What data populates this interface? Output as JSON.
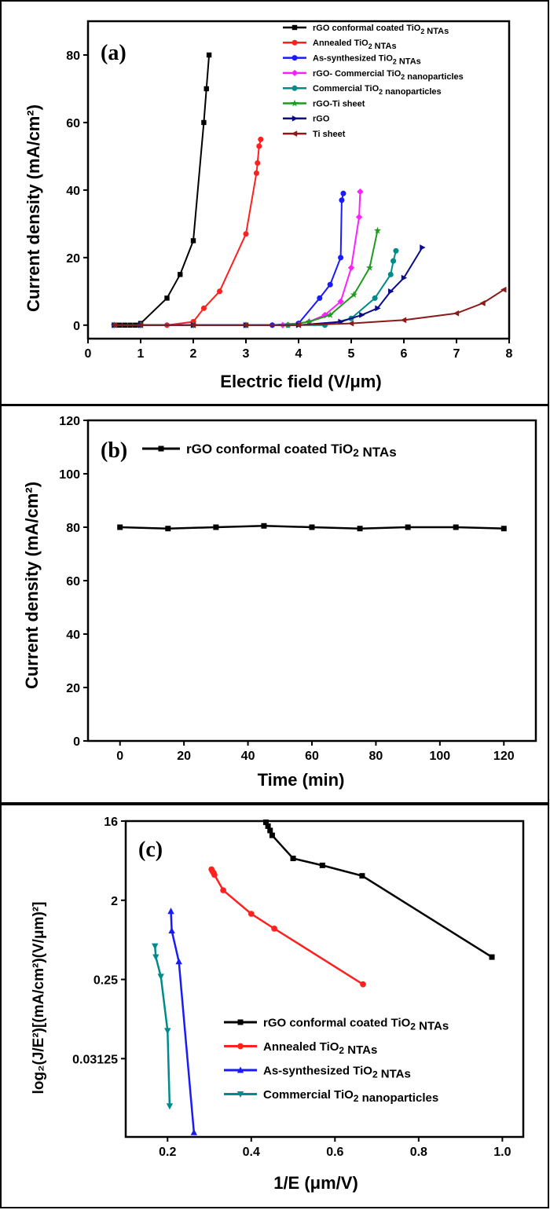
{
  "chart_data": [
    {
      "id": "a",
      "type": "line",
      "panel_label": "(a)",
      "xlabel": "Electric field (V/μm)",
      "ylabel": "Current density (mA/cm²)",
      "xlim": [
        0,
        8
      ],
      "ylim": [
        -4,
        90
      ],
      "xticks": [
        "0",
        "1",
        "2",
        "3",
        "4",
        "5",
        "6",
        "7",
        "8"
      ],
      "yticks": [
        "0",
        "20",
        "40",
        "60",
        "80"
      ],
      "legend_position": "top-right",
      "series": [
        {
          "name": "rGO conformal coated TiO2 NTAs",
          "color": "#000000",
          "marker": "square",
          "points": [
            [
              0.5,
              0
            ],
            [
              0.6,
              0
            ],
            [
              0.7,
              0
            ],
            [
              0.8,
              0
            ],
            [
              0.9,
              0
            ],
            [
              1.0,
              0.5
            ],
            [
              1.5,
              8
            ],
            [
              1.75,
              15
            ],
            [
              2.0,
              25
            ],
            [
              2.2,
              60
            ],
            [
              2.25,
              70
            ],
            [
              2.3,
              80
            ]
          ]
        },
        {
          "name": "Annealed TiO2 NTAs",
          "color": "#ff2020",
          "marker": "circle",
          "points": [
            [
              0.5,
              0
            ],
            [
              1.0,
              0
            ],
            [
              1.5,
              0
            ],
            [
              2.0,
              1
            ],
            [
              2.2,
              5
            ],
            [
              2.5,
              10
            ],
            [
              3.0,
              27
            ],
            [
              3.2,
              45
            ],
            [
              3.22,
              48
            ],
            [
              3.25,
              53
            ],
            [
              3.28,
              55
            ]
          ]
        },
        {
          "name": "As-synthesized TiO2 NTAs",
          "color": "#1a1aff",
          "marker": "circle",
          "points": [
            [
              0.5,
              0
            ],
            [
              1.0,
              0
            ],
            [
              2.0,
              0
            ],
            [
              3.0,
              0
            ],
            [
              3.5,
              0
            ],
            [
              4.0,
              0.5
            ],
            [
              4.4,
              8
            ],
            [
              4.6,
              12
            ],
            [
              4.8,
              20
            ],
            [
              4.82,
              37
            ],
            [
              4.85,
              39
            ]
          ]
        },
        {
          "name": "rGO- Commercial TiO2 nanoparticles",
          "color": "#ff20ff",
          "marker": "diamond",
          "points": [
            [
              0.5,
              0
            ],
            [
              1.0,
              0
            ],
            [
              2.0,
              0
            ],
            [
              3.0,
              0
            ],
            [
              3.7,
              0
            ],
            [
              4.2,
              1
            ],
            [
              4.5,
              3
            ],
            [
              4.8,
              7
            ],
            [
              5.0,
              17
            ],
            [
              5.15,
              32
            ],
            [
              5.17,
              39.5
            ]
          ]
        },
        {
          "name": "Commercial TiO2 nanoparticles",
          "color": "#008b8b",
          "marker": "circle",
          "points": [
            [
              0.5,
              0
            ],
            [
              1.0,
              0
            ],
            [
              2.0,
              0
            ],
            [
              3.0,
              0
            ],
            [
              3.8,
              0
            ],
            [
              4.5,
              0
            ],
            [
              5.0,
              2
            ],
            [
              5.45,
              8
            ],
            [
              5.75,
              15
            ],
            [
              5.8,
              19
            ],
            [
              5.85,
              22
            ]
          ]
        },
        {
          "name": "rGO-Ti sheet",
          "color": "#1e9a1e",
          "marker": "star",
          "points": [
            [
              0.5,
              0
            ],
            [
              1.0,
              0
            ],
            [
              2.0,
              0
            ],
            [
              3.0,
              0
            ],
            [
              3.8,
              0
            ],
            [
              4.2,
              1
            ],
            [
              4.6,
              3
            ],
            [
              5.05,
              9
            ],
            [
              5.35,
              17
            ],
            [
              5.5,
              28
            ]
          ]
        },
        {
          "name": "rGO",
          "color": "#0a0a8c",
          "marker": "triangle-right",
          "points": [
            [
              0.5,
              0
            ],
            [
              1.0,
              0
            ],
            [
              2.0,
              0
            ],
            [
              3.0,
              0
            ],
            [
              4.0,
              0
            ],
            [
              4.8,
              1
            ],
            [
              5.2,
              3
            ],
            [
              5.5,
              5
            ],
            [
              5.75,
              10
            ],
            [
              6.0,
              14
            ],
            [
              6.35,
              23
            ]
          ]
        },
        {
          "name": "Ti sheet",
          "color": "#8b1a1a",
          "marker": "triangle-left",
          "points": [
            [
              0.5,
              0
            ],
            [
              1.0,
              0
            ],
            [
              2.0,
              0
            ],
            [
              3.0,
              0
            ],
            [
              4.0,
              0
            ],
            [
              5.0,
              0.5
            ],
            [
              6.0,
              1.5
            ],
            [
              7.0,
              3.5
            ],
            [
              7.5,
              6.5
            ],
            [
              7.9,
              10.5
            ]
          ]
        }
      ]
    },
    {
      "id": "b",
      "type": "line",
      "panel_label": "(b)",
      "xlabel": "Time (min)",
      "ylabel": "Current density (mA/cm²)",
      "xlim": [
        -10,
        130
      ],
      "ylim": [
        0,
        120
      ],
      "xticks": [
        "0",
        "20",
        "40",
        "60",
        "80",
        "100",
        "120"
      ],
      "yticks": [
        "0",
        "20",
        "40",
        "60",
        "80",
        "100",
        "120"
      ],
      "legend_position": "top-left",
      "series": [
        {
          "name": "rGO conformal coated TiO2 NTAs",
          "color": "#000000",
          "marker": "square",
          "points": [
            [
              0,
              80
            ],
            [
              15,
              79.5
            ],
            [
              30,
              80
            ],
            [
              45,
              80.5
            ],
            [
              60,
              80
            ],
            [
              75,
              79.5
            ],
            [
              90,
              80
            ],
            [
              105,
              80
            ],
            [
              120,
              79.5
            ]
          ]
        }
      ]
    },
    {
      "id": "c",
      "type": "line",
      "panel_label": "(c)",
      "xlabel": "1/E (μm/V)",
      "ylabel": "log₂(J/E²)[(mA/cm²)(V/μm)²]",
      "xscale": "linear",
      "yscale": "log2",
      "xlim": [
        0.1,
        1.05
      ],
      "ylim": [
        0.004,
        16
      ],
      "xticks": [
        "0.2",
        "0.4",
        "0.6",
        "0.8",
        "1.0"
      ],
      "yticks": [
        "16",
        "2",
        "0.25",
        "0.03125"
      ],
      "legend_position": "bottom-right",
      "series": [
        {
          "name": "rGO conformal coated TiO2 NTAs",
          "color": "#000000",
          "marker": "square",
          "points": [
            [
              0.435,
              15.5
            ],
            [
              0.44,
              14
            ],
            [
              0.445,
              12.5
            ],
            [
              0.45,
              11
            ],
            [
              0.5,
              6
            ],
            [
              0.57,
              5
            ],
            [
              0.665,
              3.8
            ],
            [
              0.975,
              0.45
            ]
          ]
        },
        {
          "name": "Annealed TiO2 NTAs",
          "color": "#ff2020",
          "marker": "circle",
          "points": [
            [
              0.305,
              4.5
            ],
            [
              0.307,
              4.3
            ],
            [
              0.31,
              4.1
            ],
            [
              0.312,
              3.9
            ],
            [
              0.333,
              2.6
            ],
            [
              0.4,
              1.4
            ],
            [
              0.455,
              0.95
            ],
            [
              0.667,
              0.22
            ]
          ]
        },
        {
          "name": "As-synthesized TiO2 NTAs",
          "color": "#1a1aff",
          "marker": "triangle-up",
          "points": [
            [
              0.208,
              1.5
            ],
            [
              0.21,
              0.9
            ],
            [
              0.227,
              0.4
            ],
            [
              0.263,
              0.0045
            ]
          ]
        },
        {
          "name": "Commercial TiO2 nanoparticles",
          "color": "#008b8b",
          "marker": "triangle-down",
          "points": [
            [
              0.17,
              0.6
            ],
            [
              0.172,
              0.45
            ],
            [
              0.184,
              0.27
            ],
            [
              0.2,
              0.065
            ],
            [
              0.205,
              0.009
            ]
          ]
        }
      ]
    }
  ]
}
